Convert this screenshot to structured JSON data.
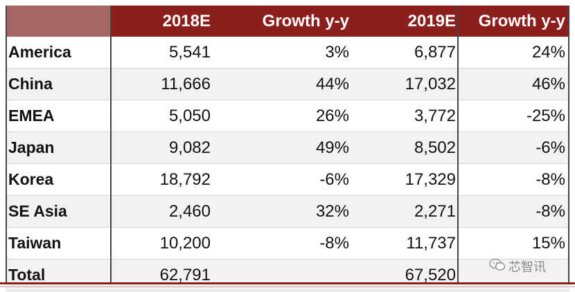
{
  "chart_data": {
    "type": "table",
    "columns": [
      "",
      "2018E",
      "Growth y-y",
      "2019E",
      "Growth y-y"
    ],
    "rows": [
      {
        "region": "America",
        "v2018": "5,541",
        "g2018": "3%",
        "v2019": "6,877",
        "g2019": "24%"
      },
      {
        "region": "China",
        "v2018": "11,666",
        "g2018": "44%",
        "v2019": "17,032",
        "g2019": "46%"
      },
      {
        "region": "EMEA",
        "v2018": "5,050",
        "g2018": "26%",
        "v2019": "3,772",
        "g2019": "-25%"
      },
      {
        "region": "Japan",
        "v2018": "9,082",
        "g2018": "49%",
        "v2019": "8,502",
        "g2019": "-6%"
      },
      {
        "region": "Korea",
        "v2018": "18,792",
        "g2018": "-6%",
        "v2019": "17,329",
        "g2019": "-8%"
      },
      {
        "region": "SE Asia",
        "v2018": "2,460",
        "g2018": "32%",
        "v2019": "2,271",
        "g2019": "-8%"
      },
      {
        "region": "Taiwan",
        "v2018": "10,200",
        "g2018": "-8%",
        "v2019": "11,737",
        "g2019": "15%"
      },
      {
        "region": "Total",
        "v2018": "62,791",
        "g2018": "",
        "v2019": "67,520",
        "g2019": ""
      }
    ]
  },
  "watermark": {
    "icon": "wechat-icon",
    "text": "芯智讯"
  },
  "colors": {
    "header_bg": "#8c1e1b",
    "header_corner_bg": "#a66664",
    "stripe": "#f2f2f2"
  }
}
